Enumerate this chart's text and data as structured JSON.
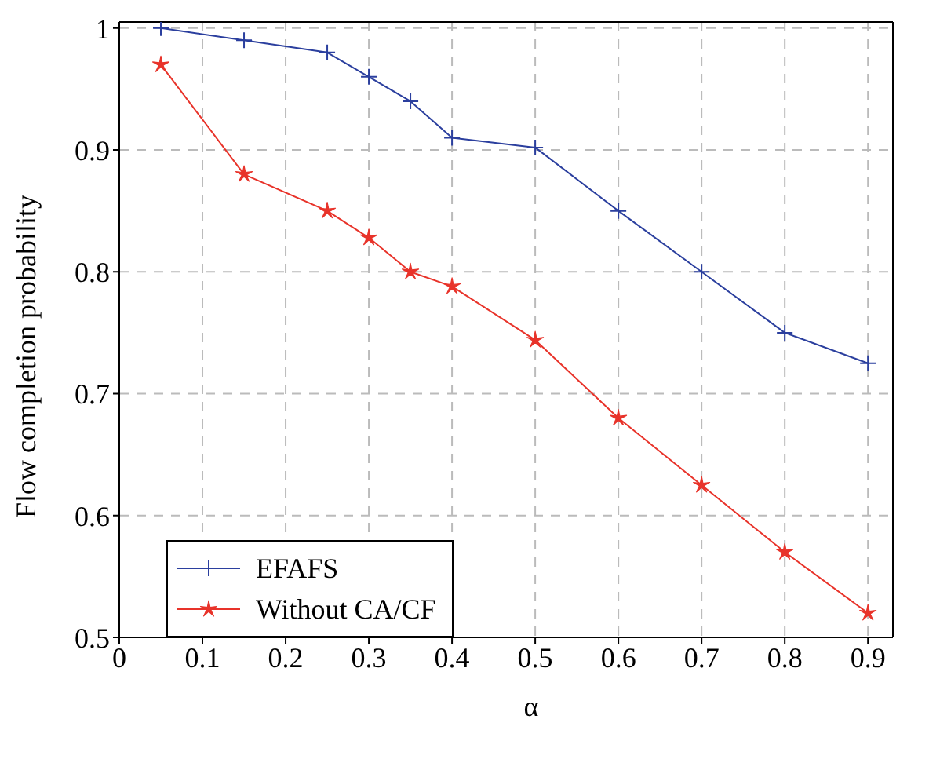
{
  "chart_data": {
    "type": "line",
    "xlabel": "α",
    "ylabel": "Flow completion probability",
    "x": [
      0.05,
      0.15,
      0.25,
      0.3,
      0.35,
      0.4,
      0.5,
      0.6,
      0.7,
      0.8,
      0.9
    ],
    "series": [
      {
        "name": "EFAFS",
        "color": "#2b3f9e",
        "marker": "cross",
        "values": [
          1.0,
          0.99,
          0.98,
          0.96,
          0.94,
          0.91,
          0.902,
          0.85,
          0.8,
          0.75,
          0.725
        ]
      },
      {
        "name": "Without CA/CF",
        "color": "#e8332a",
        "marker": "star",
        "values": [
          0.97,
          0.88,
          0.85,
          0.828,
          0.8,
          0.788,
          0.744,
          0.68,
          0.625,
          0.57,
          0.52
        ]
      }
    ],
    "xlim": [
      0,
      0.93
    ],
    "xticks": [
      0,
      0.1,
      0.2,
      0.3,
      0.4,
      0.5,
      0.6,
      0.7,
      0.8,
      0.9
    ],
    "ylim": [
      0.5,
      1.005
    ],
    "yticks": [
      0.5,
      0.6,
      0.7,
      0.8,
      0.9,
      1
    ],
    "grid": true,
    "legend": "bottom left",
    "line_style": "solid"
  }
}
